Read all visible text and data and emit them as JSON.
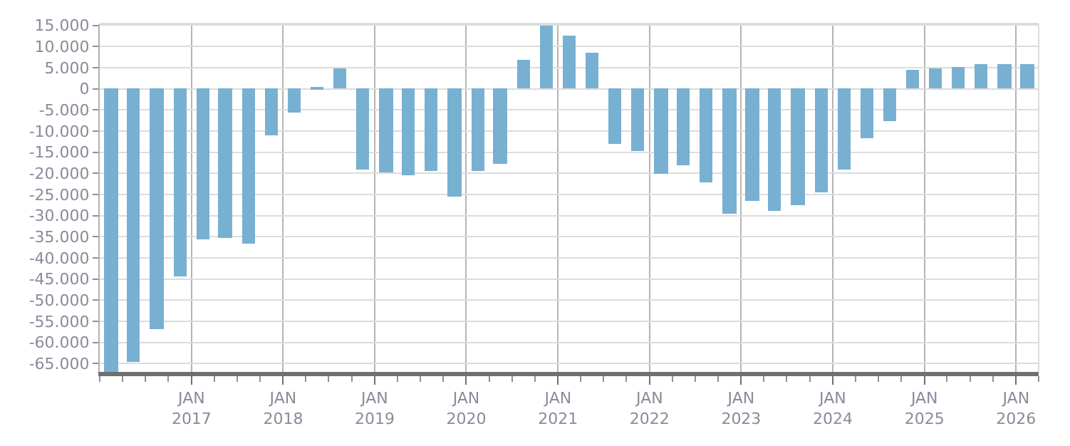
{
  "chart_data": {
    "type": "bar",
    "color": "#78b0d2",
    "x": [
      "2016-02-15",
      "2016-05-15",
      "2016-08-15",
      "2016-11-15",
      "2017-02-15",
      "2017-05-15",
      "2017-08-15",
      "2017-11-15",
      "2018-02-15",
      "2018-05-15",
      "2018-08-15",
      "2018-11-15",
      "2019-02-15",
      "2019-05-15",
      "2019-08-15",
      "2019-11-15",
      "2020-02-15",
      "2020-05-15",
      "2020-08-15",
      "2020-11-15",
      "2021-02-15",
      "2021-05-15",
      "2021-08-15",
      "2021-11-15",
      "2022-02-15",
      "2022-05-15",
      "2022-08-15",
      "2022-11-15",
      "2023-02-15",
      "2023-05-15",
      "2023-08-15",
      "2023-11-15",
      "2024-02-15",
      "2024-05-15",
      "2024-08-15",
      "2024-11-15",
      "2025-02-15",
      "2025-05-15",
      "2025-08-15",
      "2025-11-15",
      "2026-02-15"
    ],
    "values": [
      -67000,
      -64500,
      -56800,
      -44500,
      -35700,
      -35200,
      -36800,
      -10900,
      -5600,
      600,
      5000,
      -19200,
      -19800,
      -20500,
      -19500,
      -25400,
      -19500,
      -17700,
      6900,
      15200,
      12700,
      8400,
      -13000,
      -14600,
      -20100,
      -18000,
      -22000,
      -29500,
      -26600,
      -28800,
      -27500,
      -24500,
      -19200,
      -11800,
      -7500,
      4400,
      5000,
      5300,
      5700,
      5700,
      6000
    ],
    "xlim": [
      "2016-01-01",
      "2026-04-01"
    ],
    "xticks": [
      {
        "value": "2017-01-01",
        "label": "JAN\n2017"
      },
      {
        "value": "2018-01-01",
        "label": "JAN\n2018"
      },
      {
        "value": "2019-01-01",
        "label": "JAN\n2019"
      },
      {
        "value": "2020-01-01",
        "label": "JAN\n2020"
      },
      {
        "value": "2021-01-01",
        "label": "JAN\n2021"
      },
      {
        "value": "2022-01-01",
        "label": "JAN\n2022"
      },
      {
        "value": "2023-01-01",
        "label": "JAN\n2023"
      },
      {
        "value": "2024-01-01",
        "label": "JAN\n2024"
      },
      {
        "value": "2025-01-01",
        "label": "JAN\n2025"
      },
      {
        "value": "2026-01-01",
        "label": "JAN\n2026"
      }
    ],
    "ylim": [
      -67000,
      15300
    ],
    "yticks": [
      {
        "value": 15000,
        "label": "15.000"
      },
      {
        "value": 10000,
        "label": "10.000"
      },
      {
        "value": 5000,
        "label": "5.000"
      },
      0,
      {
        "value": -5000,
        "label": "-5.000"
      },
      {
        "value": -10000,
        "label": "-10.000"
      },
      {
        "value": -15000,
        "label": "-15.000"
      },
      {
        "value": -20000,
        "label": "-20.000"
      },
      {
        "value": -25000,
        "label": "-25.000"
      },
      {
        "value": -30000,
        "label": "-30.000"
      },
      {
        "value": -35000,
        "label": "-35.000"
      },
      {
        "value": -40000,
        "label": "-40.000"
      },
      {
        "value": -45000,
        "label": "-45.000"
      },
      {
        "value": -50000,
        "label": "-50.000"
      },
      {
        "value": -55000,
        "label": "-55.000"
      },
      {
        "value": -60000,
        "label": "-60.000"
      },
      {
        "value": -65000,
        "label": "-65.000"
      }
    ],
    "grid": true
  }
}
